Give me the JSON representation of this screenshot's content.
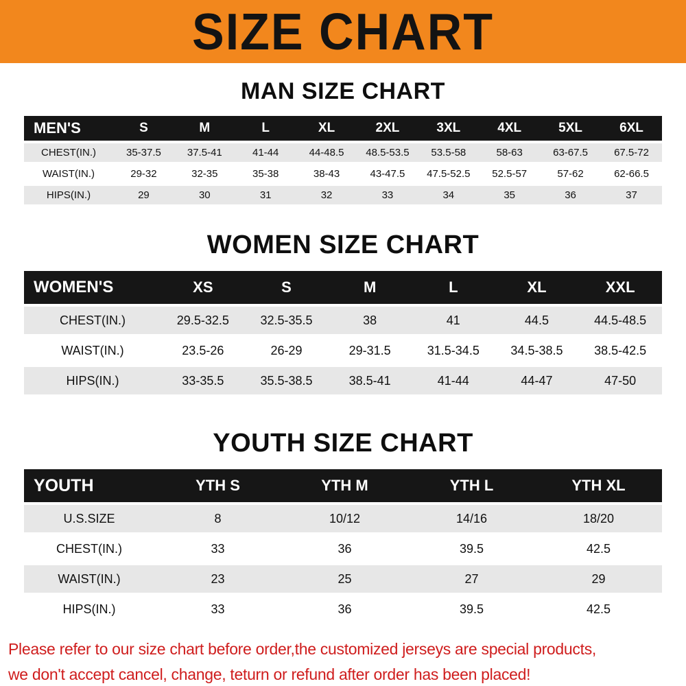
{
  "banner": {
    "title": "SIZE CHART"
  },
  "colors": {
    "banner_bg": "#f2871d",
    "table_header_bg": "#161616",
    "row_shade": "#e7e7e7",
    "footer_text": "#cf1d1d"
  },
  "sections": [
    {
      "id": "man",
      "title": "MAN SIZE CHART",
      "table": {
        "header": [
          "MEN'S",
          "S",
          "M",
          "L",
          "XL",
          "2XL",
          "3XL",
          "4XL",
          "5XL",
          "6XL"
        ],
        "rows": [
          [
            "CHEST(IN.)",
            "35-37.5",
            "37.5-41",
            "41-44",
            "44-48.5",
            "48.5-53.5",
            "53.5-58",
            "58-63",
            "63-67.5",
            "67.5-72"
          ],
          [
            "WAIST(IN.)",
            "29-32",
            "32-35",
            "35-38",
            "38-43",
            "43-47.5",
            "47.5-52.5",
            "52.5-57",
            "57-62",
            "62-66.5"
          ],
          [
            "HIPS(IN.)",
            "29",
            "30",
            "31",
            "32",
            "33",
            "34",
            "35",
            "36",
            "37"
          ]
        ]
      }
    },
    {
      "id": "women",
      "title": "WOMEN SIZE CHART",
      "table": {
        "header": [
          "WOMEN'S",
          "XS",
          "S",
          "M",
          "L",
          "XL",
          "XXL"
        ],
        "rows": [
          [
            "CHEST(IN.)",
            "29.5-32.5",
            "32.5-35.5",
            "38",
            "41",
            "44.5",
            "44.5-48.5"
          ],
          [
            "WAIST(IN.)",
            "23.5-26",
            "26-29",
            "29-31.5",
            "31.5-34.5",
            "34.5-38.5",
            "38.5-42.5"
          ],
          [
            "HIPS(IN.)",
            "33-35.5",
            "35.5-38.5",
            "38.5-41",
            "41-44",
            "44-47",
            "47-50"
          ]
        ]
      }
    },
    {
      "id": "youth",
      "title": "YOUTH SIZE CHART",
      "table": {
        "header": [
          "YOUTH",
          "YTH S",
          "YTH M",
          "YTH L",
          "YTH XL"
        ],
        "rows": [
          [
            "U.S.SIZE",
            "8",
            "10/12",
            "14/16",
            "18/20"
          ],
          [
            "CHEST(IN.)",
            "33",
            "36",
            "39.5",
            "42.5"
          ],
          [
            "WAIST(IN.)",
            "23",
            "25",
            "27",
            "29"
          ],
          [
            "HIPS(IN.)",
            "33",
            "36",
            "39.5",
            "42.5"
          ]
        ]
      }
    }
  ],
  "footer": {
    "line1": "Please refer to our size chart before order,the customized jerseys are special products,",
    "line2": "we don't accept cancel, change, teturn or refund after order has been placed!"
  }
}
